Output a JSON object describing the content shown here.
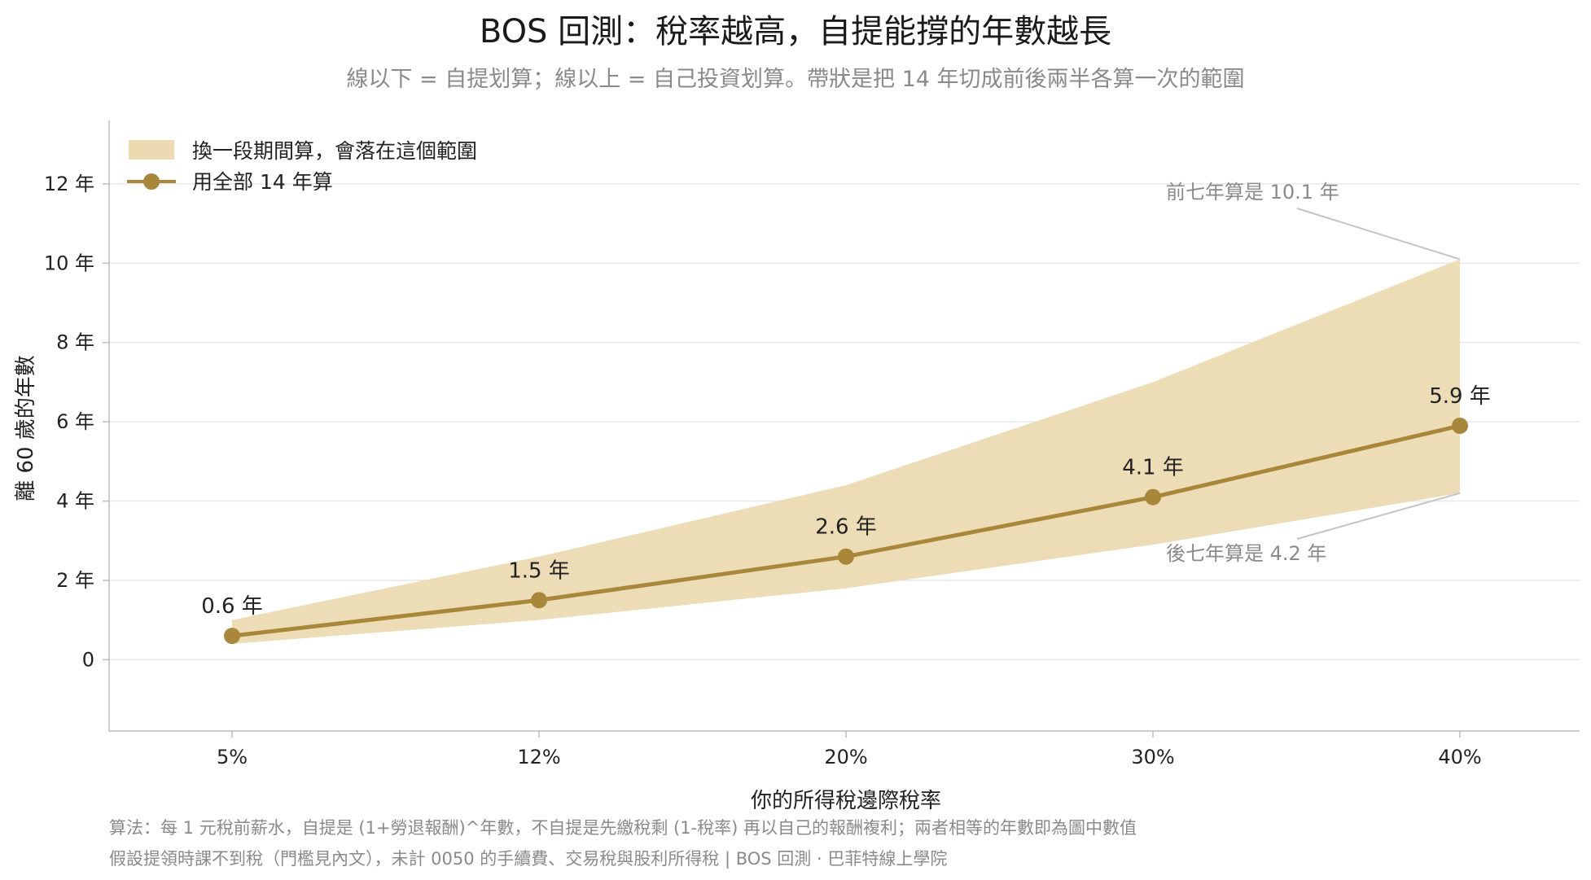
{
  "title": "BOS 回測：稅率越高，自提能撐的年數越長",
  "subtitle": "線以下 = 自提划算；線以上 = 自己投資划算。帶狀是把 14 年切成前後兩半各算一次的範圍",
  "footnote_lines": [
    "算法：每 1 元稅前薪水，自提是 (1+勞退報酬)^年數，不自提是先繳稅剩 (1-稅率) 再以自己的報酬複利；兩者相等的年數即為圖中數值",
    "假設提領時課不到稅（門檻見內文），未計 0050 的手續費、交易稅與股利所得稅 | BOS 回測 · 巴菲特線上學院"
  ],
  "colors": {
    "line": "#a8873a",
    "band": "#ecdbb2",
    "grid": "#e8e8e8",
    "axis": "#bdbdbd",
    "annotation": "#8a8a8a"
  },
  "chart_data": {
    "type": "line",
    "xlabel": "你的所得稅邊際稅率",
    "ylabel": "離 60 歲的年數",
    "categories": [
      "5%",
      "12%",
      "20%",
      "30%",
      "40%"
    ],
    "ylim": [
      -1.8,
      13.6
    ],
    "yticks": [
      0,
      2,
      4,
      6,
      8,
      10,
      12
    ],
    "ytick_labels": [
      "0",
      "2 年",
      "4 年",
      "6 年",
      "8 年",
      "10 年",
      "12 年"
    ],
    "grid": "horizontal",
    "legend_position": "top-left",
    "series": [
      {
        "name": "用全部 14 年算",
        "values": [
          0.6,
          1.5,
          2.6,
          4.1,
          5.9
        ],
        "value_labels": [
          "0.6 年",
          "1.5 年",
          "2.6 年",
          "4.1 年",
          "5.9 年"
        ]
      }
    ],
    "band": {
      "name": "換一段期間算，會落在這個範圍",
      "upper": [
        1.0,
        2.6,
        4.4,
        7.0,
        10.1
      ],
      "lower": [
        0.4,
        1.0,
        1.8,
        2.9,
        4.2
      ]
    },
    "annotations": [
      {
        "text": "前七年算是 10.1 年",
        "category": "40%",
        "value": 10.1,
        "side": "above"
      },
      {
        "text": "後七年算是 4.2 年",
        "category": "40%",
        "value": 4.2,
        "side": "below"
      }
    ]
  }
}
